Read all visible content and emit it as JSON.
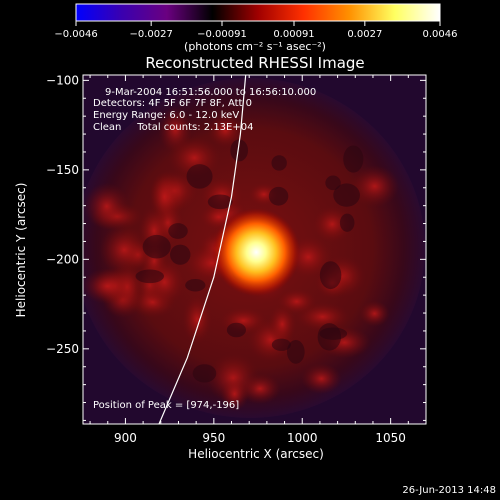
{
  "chart_data": {
    "type": "heatmap",
    "title": "Reconstructed RHESSI Image",
    "xlabel": "Heliocentric X (arcsec)",
    "ylabel": "Heliocentric Y (arcsec)",
    "xlim": [
      876,
      1070
    ],
    "ylim": [
      -292,
      -97
    ],
    "xticks": [
      900,
      950,
      1000,
      1050
    ],
    "yticks": [
      -100,
      -150,
      -200,
      -250
    ],
    "xtick_labels": [
      "900",
      "950",
      "1000",
      "1050"
    ],
    "ytick_labels": [
      "−100",
      "−150",
      "−200",
      "−250"
    ],
    "colorbar": {
      "range": [
        -0.0046,
        0.0046
      ],
      "ticks": [
        -0.0046,
        -0.0027,
        -0.00091,
        0.00091,
        0.0027,
        0.0046
      ],
      "tick_labels": [
        "−0.0046",
        "−0.0027",
        "−0.00091",
        "0.00091",
        "0.0027",
        "0.0046"
      ],
      "unit_label": "(photons cm⁻² s⁻¹ asec⁻²)",
      "colors": [
        "#0000ff",
        "#3a00b0",
        "#6a0080",
        "#000000",
        "#a00000",
        "#ff3000",
        "#ff9000",
        "#ffff60",
        "#ffffff"
      ]
    },
    "annotations": [
      "9-Mar-2004 16:51:56.000 to 16:56:10.000",
      "Detectors: 4F 5F 6F 7F 8F, Att 0",
      "Energy Range: 6.0 - 12.0 keV",
      "Clean     Total counts: 2.13E+04",
      "Position of Peak = [974,-196]"
    ],
    "peak": {
      "x": 974,
      "y": -196
    },
    "limb_curve": [
      [
        919,
        -292
      ],
      [
        935,
        -255
      ],
      [
        950,
        -210
      ],
      [
        960,
        -165
      ],
      [
        965,
        -130
      ],
      [
        968,
        -97
      ]
    ],
    "grid": false
  },
  "footer_date": "26-Jun-2013 14:48"
}
